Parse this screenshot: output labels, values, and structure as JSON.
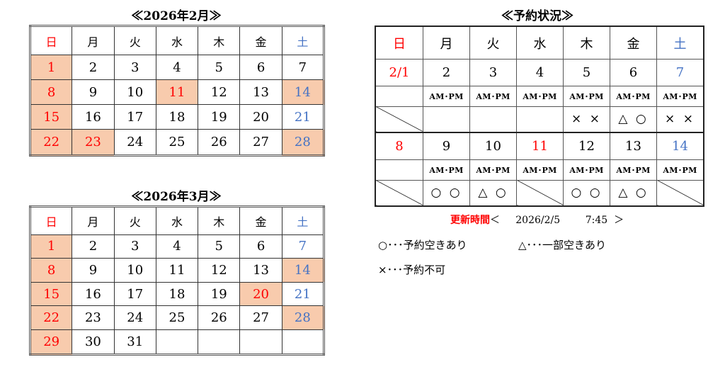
{
  "colors": {
    "sunday": "#ff0000",
    "saturday": "#4472c4",
    "highlight": "#f8cbad"
  },
  "weekdays": [
    "日",
    "月",
    "火",
    "水",
    "木",
    "金",
    "土"
  ],
  "calendars": [
    {
      "title": "≪2026年2月≫",
      "weeks": [
        [
          {
            "d": "1",
            "c": "red",
            "h": true
          },
          {
            "d": "2"
          },
          {
            "d": "3"
          },
          {
            "d": "4"
          },
          {
            "d": "5"
          },
          {
            "d": "6"
          },
          {
            "d": "7"
          }
        ],
        [
          {
            "d": "8",
            "c": "red",
            "h": true
          },
          {
            "d": "9"
          },
          {
            "d": "10"
          },
          {
            "d": "11",
            "c": "red",
            "h": true
          },
          {
            "d": "12"
          },
          {
            "d": "13"
          },
          {
            "d": "14",
            "c": "blue",
            "h": true
          }
        ],
        [
          {
            "d": "15",
            "c": "red",
            "h": true
          },
          {
            "d": "16"
          },
          {
            "d": "17"
          },
          {
            "d": "18"
          },
          {
            "d": "19"
          },
          {
            "d": "20"
          },
          {
            "d": "21",
            "c": "blue"
          }
        ],
        [
          {
            "d": "22",
            "c": "red",
            "h": true
          },
          {
            "d": "23",
            "c": "red",
            "h": true
          },
          {
            "d": "24"
          },
          {
            "d": "25"
          },
          {
            "d": "26"
          },
          {
            "d": "27"
          },
          {
            "d": "28",
            "c": "blue",
            "h": true
          }
        ]
      ]
    },
    {
      "title": "≪2026年3月≫",
      "weeks": [
        [
          {
            "d": "1",
            "c": "red",
            "h": true
          },
          {
            "d": "2"
          },
          {
            "d": "3"
          },
          {
            "d": "4"
          },
          {
            "d": "5"
          },
          {
            "d": "6"
          },
          {
            "d": "7",
            "c": "blue"
          }
        ],
        [
          {
            "d": "8",
            "c": "red",
            "h": true
          },
          {
            "d": "9"
          },
          {
            "d": "10"
          },
          {
            "d": "11"
          },
          {
            "d": "12"
          },
          {
            "d": "13"
          },
          {
            "d": "14",
            "c": "blue",
            "h": true
          }
        ],
        [
          {
            "d": "15",
            "c": "red",
            "h": true
          },
          {
            "d": "16"
          },
          {
            "d": "17"
          },
          {
            "d": "18"
          },
          {
            "d": "19"
          },
          {
            "d": "20",
            "c": "red",
            "h": true
          },
          {
            "d": "21",
            "c": "blue"
          }
        ],
        [
          {
            "d": "22",
            "c": "red",
            "h": true
          },
          {
            "d": "23"
          },
          {
            "d": "24"
          },
          {
            "d": "25"
          },
          {
            "d": "26"
          },
          {
            "d": "27"
          },
          {
            "d": "28",
            "c": "blue",
            "h": true
          }
        ],
        [
          {
            "d": "29",
            "c": "red",
            "h": true
          },
          {
            "d": "30"
          },
          {
            "d": "31"
          },
          {
            "d": ""
          },
          {
            "d": ""
          },
          {
            "d": ""
          },
          {
            "d": ""
          }
        ]
      ]
    }
  ],
  "reservation": {
    "title": "≪予約状況≫",
    "weeks": [
      {
        "dates": [
          {
            "d": "2/1",
            "c": "red"
          },
          {
            "d": "2"
          },
          {
            "d": "3"
          },
          {
            "d": "4"
          },
          {
            "d": "5"
          },
          {
            "d": "6"
          },
          {
            "d": "7",
            "c": "blue"
          }
        ],
        "slots": [
          "",
          "AM･PM",
          "AM･PM",
          "AM･PM",
          "AM･PM",
          "AM･PM",
          "AM･PM"
        ],
        "status": [
          null,
          "",
          "",
          "",
          "×  ×",
          "△  ○",
          "×  ×"
        ]
      },
      {
        "dates": [
          {
            "d": "8",
            "c": "red"
          },
          {
            "d": "9"
          },
          {
            "d": "10"
          },
          {
            "d": "11",
            "c": "red"
          },
          {
            "d": "12"
          },
          {
            "d": "13"
          },
          {
            "d": "14",
            "c": "blue"
          }
        ],
        "slots": [
          "",
          "AM･PM",
          "AM･PM",
          "AM･PM",
          "AM･PM",
          "AM･PM",
          "AM･PM"
        ],
        "status": [
          null,
          "○  ○",
          "△  ○",
          null,
          "○  ○",
          "△  ○",
          null
        ]
      }
    ],
    "updated": {
      "label": "更新時間",
      "open": "＜",
      "date": "2026/2/5",
      "time": "7:45",
      "close": "＞"
    },
    "legend": {
      "available": "○･･･予約空きあり",
      "partial": "△･･･一部空きあり",
      "unavailable": "×･･･予約不可"
    }
  }
}
